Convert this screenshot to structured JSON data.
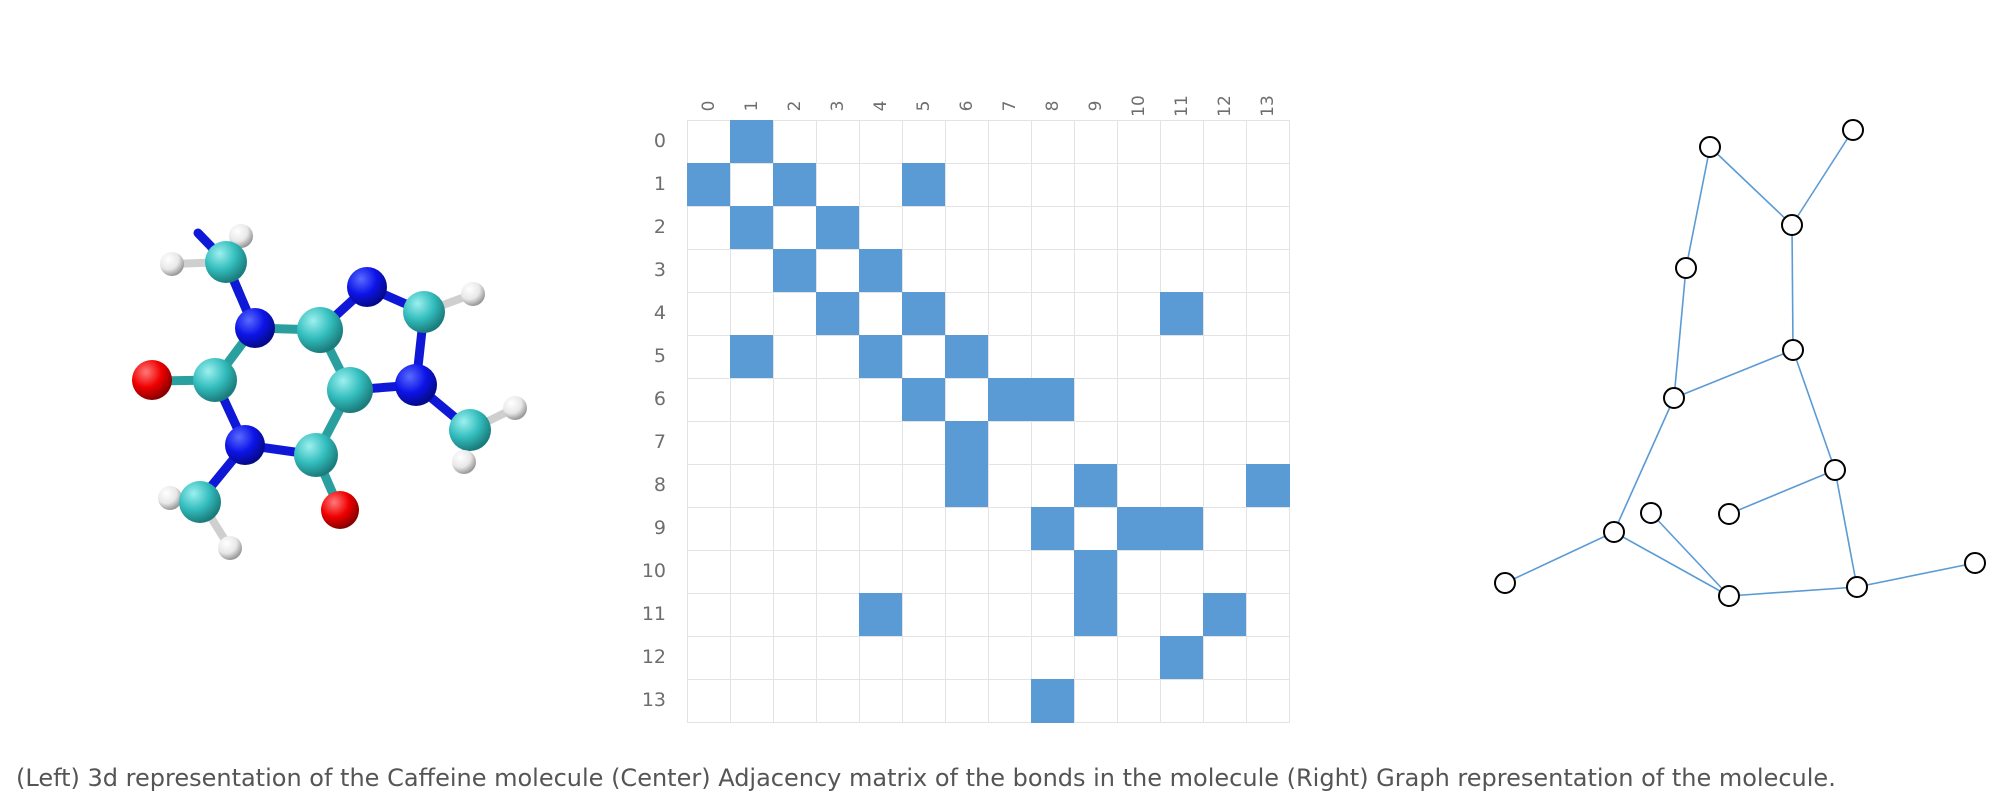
{
  "caption": "(Left) 3d representation of the Caffeine molecule (Center) Adjacency matrix of the bonds in the molecule (Right) Graph representation of the molecule.",
  "matrix": {
    "labels": [
      "0",
      "1",
      "2",
      "3",
      "4",
      "5",
      "6",
      "7",
      "8",
      "9",
      "10",
      "11",
      "12",
      "13"
    ],
    "edges": [
      [
        0,
        1
      ],
      [
        1,
        2
      ],
      [
        1,
        5
      ],
      [
        2,
        3
      ],
      [
        3,
        4
      ],
      [
        4,
        5
      ],
      [
        4,
        11
      ],
      [
        5,
        6
      ],
      [
        6,
        7
      ],
      [
        6,
        8
      ],
      [
        8,
        9
      ],
      [
        8,
        13
      ],
      [
        9,
        10
      ],
      [
        9,
        11
      ],
      [
        11,
        12
      ]
    ],
    "colors": {
      "filled": "#5b9bd5",
      "grid": "#e3e3e3"
    }
  },
  "graph": {
    "edge_color": "#5b9bd5",
    "node_fill": "#ffffff",
    "node_stroke": "#000000"
  },
  "molecule": {
    "colors": {
      "carbon": "#3cc4c4",
      "nitrogen": "#0a10e6",
      "oxygen": "#ff0000",
      "hydrogen": "#f2f2f2",
      "bond_n": "#0a10e6"
    }
  }
}
